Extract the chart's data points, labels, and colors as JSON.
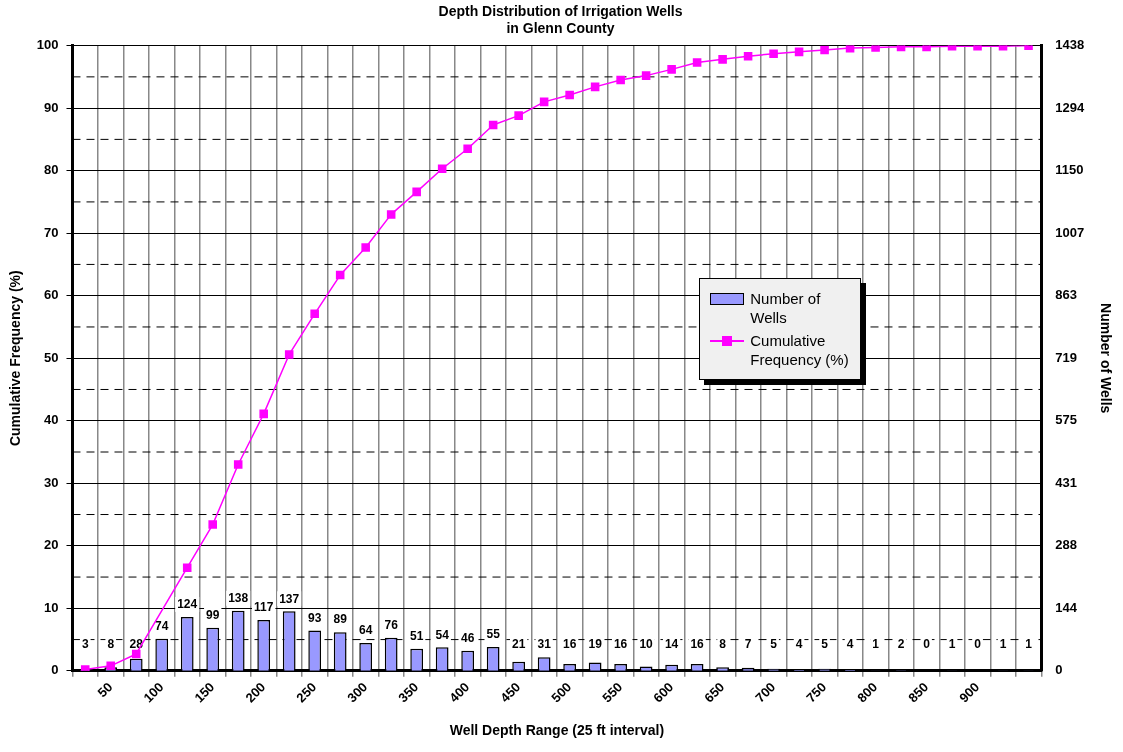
{
  "chart_data": {
    "type": "bar",
    "title": "Depth Distribution of Irrigation Wells\nin Glenn County",
    "xlabel": "Well Depth Range (25 ft interval)",
    "ylabel": "Cumulative Frequency (%)",
    "y2label": "Number of Wells",
    "categories": [
      null,
      "50",
      null,
      "100",
      null,
      "150",
      null,
      "200",
      null,
      "250",
      null,
      "300",
      null,
      "350",
      null,
      "400",
      null,
      "450",
      null,
      "500",
      null,
      "550",
      null,
      "600",
      null,
      "650",
      null,
      "700",
      null,
      "750",
      null,
      "800",
      null,
      "850",
      null,
      "900",
      null,
      null
    ],
    "series": [
      {
        "name": "Number of Wells",
        "axis": "y2",
        "color": "#9999ff",
        "data_labels": true,
        "values": [
          3,
          8,
          28,
          74,
          124,
          99,
          138,
          117,
          137,
          93,
          89,
          64,
          76,
          51,
          54,
          46,
          55,
          21,
          31,
          16,
          19,
          16,
          10,
          14,
          16,
          8,
          7,
          5,
          4,
          5,
          4,
          1,
          2,
          0,
          1,
          0,
          1,
          1
        ]
      },
      {
        "name": "Cumulative Frequency (%)",
        "type": "line",
        "color": "#ff00ff",
        "marker": "square",
        "values": [
          0.2,
          0.8,
          2.7,
          null,
          16.5,
          23.4,
          33.0,
          41.1,
          50.6,
          57.1,
          63.3,
          67.7,
          73.0,
          76.6,
          80.3,
          83.5,
          87.3,
          88.8,
          91.0,
          92.1,
          93.4,
          94.5,
          95.2,
          96.2,
          97.3,
          97.8,
          98.3,
          98.7,
          99.0,
          99.3,
          99.6,
          99.7,
          99.8,
          99.8,
          99.9,
          99.9,
          99.9,
          100
        ]
      }
    ],
    "ylim": [
      0,
      100
    ],
    "yticks": [
      0,
      10,
      20,
      30,
      40,
      50,
      60,
      70,
      80,
      90,
      100
    ],
    "y2lim": [
      0,
      1438
    ],
    "y2ticks": [
      0,
      144,
      288,
      431,
      575,
      719,
      863,
      1007,
      1150,
      1294,
      1438
    ],
    "grid": true,
    "legend": "right"
  }
}
